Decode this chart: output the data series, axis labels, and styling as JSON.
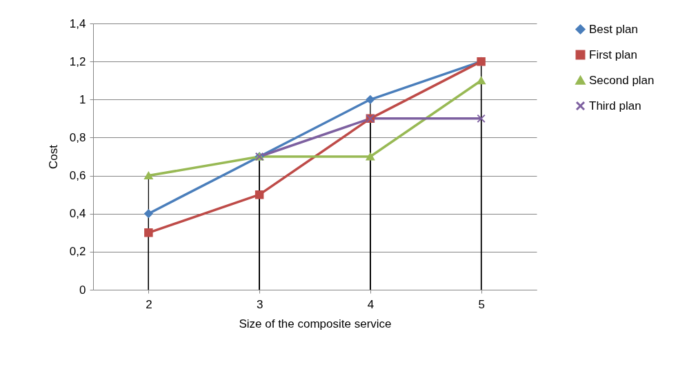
{
  "chart_data": {
    "type": "line",
    "xlabel": "Size of the composite service",
    "ylabel": "Cost",
    "categories": [
      "2",
      "3",
      "4",
      "5"
    ],
    "series": [
      {
        "name": "Best plan",
        "color": "#4a7ebb",
        "marker": "diamond",
        "values": [
          0.4,
          0.7,
          1.0,
          1.2
        ]
      },
      {
        "name": "First plan",
        "color": "#be4b48",
        "marker": "square",
        "values": [
          0.3,
          0.5,
          0.9,
          1.2
        ]
      },
      {
        "name": "Second plan",
        "color": "#98b954",
        "marker": "triangle",
        "values": [
          0.6,
          0.7,
          0.7,
          1.1
        ]
      },
      {
        "name": "Third plan",
        "color": "#7d60a0",
        "marker": "cross",
        "values": [
          null,
          0.7,
          0.9,
          0.9
        ]
      }
    ],
    "ylim": [
      0,
      1.4
    ],
    "yticks": [
      0,
      {
        "value": 0.2,
        "label": "0,2"
      },
      {
        "value": 0.4,
        "label": "0,4"
      },
      {
        "value": 0.6,
        "label": "0,6"
      },
      {
        "value": 0.8,
        "label": "0,8"
      },
      1,
      {
        "value": 1.2,
        "label": "1,2"
      },
      {
        "value": 1.4,
        "label": "1,4"
      }
    ],
    "grid": true,
    "legend": "right",
    "line_style": "solid"
  }
}
